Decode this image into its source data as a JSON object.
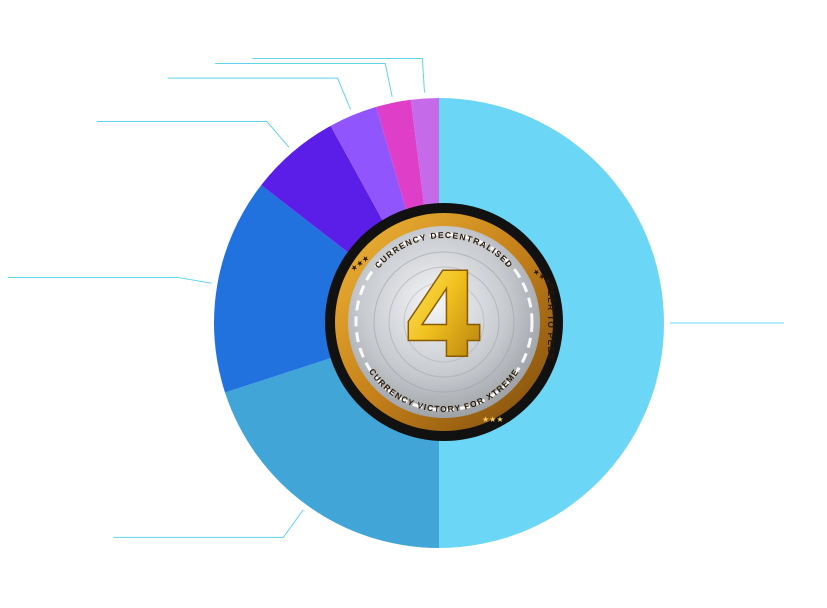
{
  "chart_data": {
    "type": "pie",
    "title": "",
    "slices": [
      {
        "label": "",
        "value": 50.0,
        "color": "#6bd6f6"
      },
      {
        "label": "",
        "value": 20.0,
        "color": "#42a5d8"
      },
      {
        "label": "",
        "value": 15.5,
        "color": "#2172de"
      },
      {
        "label": "",
        "value": 6.5,
        "color": "#5b1de8"
      },
      {
        "label": "",
        "value": 3.5,
        "color": "#9055fc"
      },
      {
        "label": "",
        "value": 2.5,
        "color": "#df3ec8"
      },
      {
        "label": "",
        "value": 2.0,
        "color": "#c56ae8"
      }
    ],
    "legend": "none",
    "leader_color": "#5fd4ec"
  },
  "coin": {
    "top_text": "CURRENCY DECENTRALISED",
    "right_text": "PEER TO PEER",
    "bottom_text": "CURRENCY VICTORY FOR XTREME",
    "stars": "★★★",
    "logo_glyph": "4",
    "ring_color": "#111111",
    "gold_color": "#d9a21b",
    "silver_color": "#c9ccd1"
  }
}
